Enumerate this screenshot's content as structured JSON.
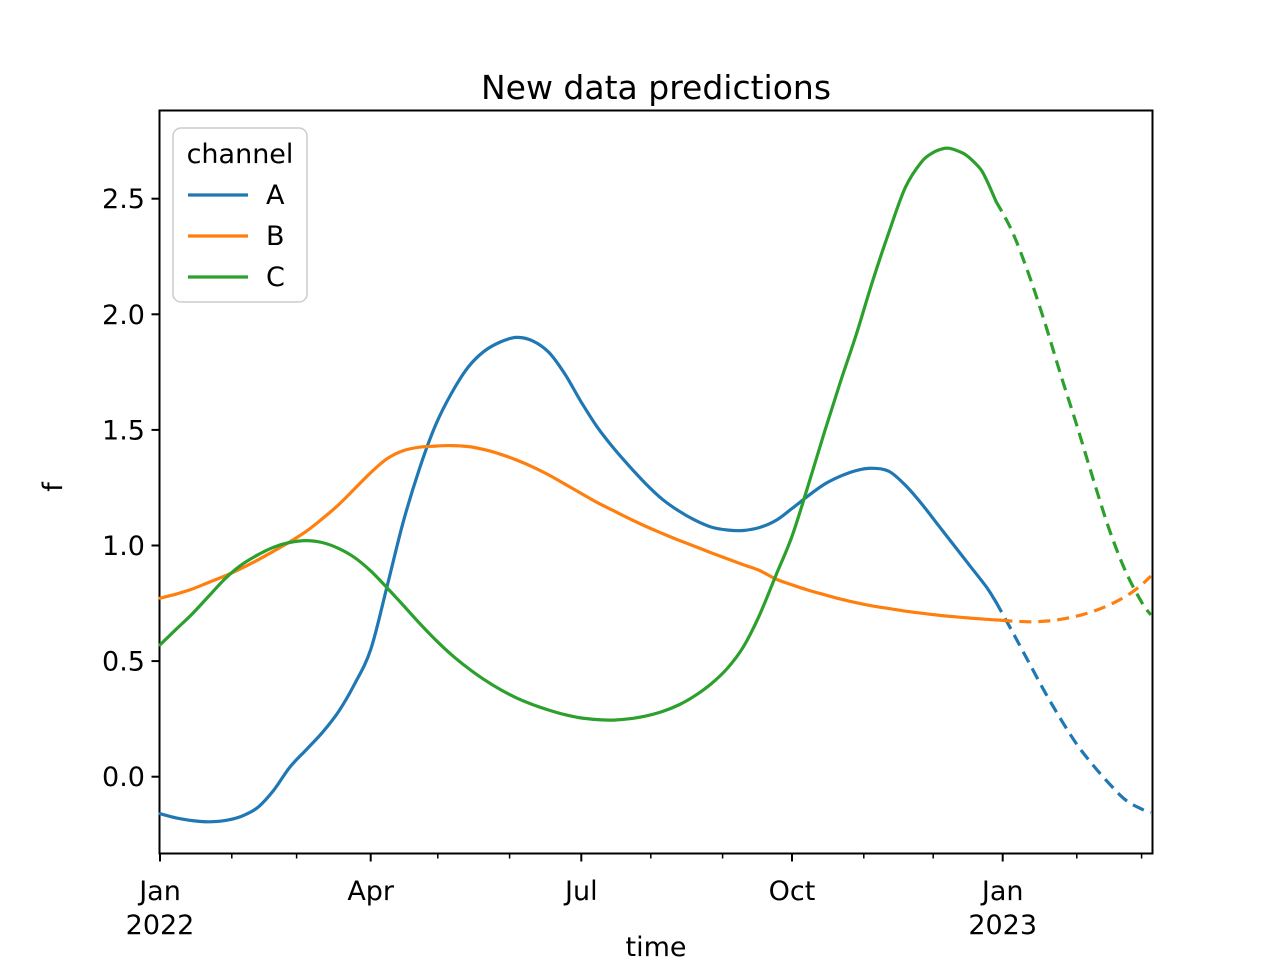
{
  "chart_data": {
    "type": "line",
    "title": "New data predictions",
    "xlabel": "time",
    "ylabel": "f",
    "x_unit": "days_since_2022-01-01",
    "xlim_days": [
      0,
      428.7
    ],
    "ylim": [
      -0.33,
      2.88
    ],
    "grid": false,
    "line_style_meaning": {
      "solid": "observed data",
      "dashed": "prediction"
    },
    "legend": {
      "title": "channel",
      "position": "upper left"
    },
    "xticks_major": [
      {
        "day": 0,
        "label": "Jan",
        "year": "2022"
      },
      {
        "day": 91,
        "label": "Apr",
        "year": ""
      },
      {
        "day": 182,
        "label": "Jul",
        "year": ""
      },
      {
        "day": 273,
        "label": "Oct",
        "year": ""
      },
      {
        "day": 364,
        "label": "Jan",
        "year": "2023"
      }
    ],
    "xticks_minor_days": [
      31,
      59,
      120,
      151,
      212,
      243,
      304,
      334,
      396,
      424
    ],
    "yticks": [
      0.0,
      0.5,
      1.0,
      1.5,
      2.0,
      2.5
    ],
    "series": [
      {
        "name": "A",
        "color": "#1f77b4",
        "solid_points_day_value": [
          [
            0,
            -0.16
          ],
          [
            7,
            -0.178
          ],
          [
            14,
            -0.19
          ],
          [
            21,
            -0.195
          ],
          [
            28,
            -0.19
          ],
          [
            35,
            -0.172
          ],
          [
            42,
            -0.135
          ],
          [
            49,
            -0.06
          ],
          [
            56,
            0.04
          ],
          [
            63,
            0.115
          ],
          [
            70,
            0.19
          ],
          [
            77,
            0.28
          ],
          [
            84,
            0.4
          ],
          [
            91,
            0.55
          ],
          [
            98,
            0.82
          ],
          [
            105,
            1.1
          ],
          [
            112,
            1.33
          ],
          [
            119,
            1.52
          ],
          [
            126,
            1.66
          ],
          [
            133,
            1.77
          ],
          [
            140,
            1.84
          ],
          [
            147,
            1.88
          ],
          [
            154,
            1.9
          ],
          [
            161,
            1.885
          ],
          [
            168,
            1.835
          ],
          [
            175,
            1.74
          ],
          [
            182,
            1.62
          ],
          [
            189,
            1.51
          ],
          [
            196,
            1.42
          ],
          [
            203,
            1.34
          ],
          [
            210,
            1.265
          ],
          [
            217,
            1.2
          ],
          [
            224,
            1.15
          ],
          [
            231,
            1.11
          ],
          [
            238,
            1.08
          ],
          [
            245,
            1.067
          ],
          [
            252,
            1.065
          ],
          [
            259,
            1.078
          ],
          [
            266,
            1.108
          ],
          [
            273,
            1.16
          ],
          [
            280,
            1.215
          ],
          [
            287,
            1.265
          ],
          [
            294,
            1.3
          ],
          [
            301,
            1.325
          ],
          [
            308,
            1.334
          ],
          [
            315,
            1.32
          ],
          [
            322,
            1.26
          ],
          [
            329,
            1.18
          ],
          [
            336,
            1.09
          ],
          [
            343,
            1.0
          ],
          [
            350,
            0.91
          ],
          [
            357,
            0.82
          ],
          [
            361,
            0.757
          ]
        ],
        "dashed_points_day_value": [
          [
            361,
            0.757
          ],
          [
            368,
            0.63
          ],
          [
            375,
            0.5
          ],
          [
            382,
            0.37
          ],
          [
            389,
            0.25
          ],
          [
            396,
            0.14
          ],
          [
            403,
            0.05
          ],
          [
            410,
            -0.03
          ],
          [
            417,
            -0.1
          ],
          [
            424,
            -0.14
          ],
          [
            428,
            -0.155
          ]
        ]
      },
      {
        "name": "B",
        "color": "#ff7f0e",
        "solid_points_day_value": [
          [
            0,
            0.772
          ],
          [
            7,
            0.79
          ],
          [
            14,
            0.812
          ],
          [
            21,
            0.84
          ],
          [
            28,
            0.868
          ],
          [
            35,
            0.9
          ],
          [
            42,
            0.936
          ],
          [
            49,
            0.975
          ],
          [
            56,
            1.015
          ],
          [
            63,
            1.06
          ],
          [
            70,
            1.115
          ],
          [
            77,
            1.175
          ],
          [
            84,
            1.245
          ],
          [
            91,
            1.315
          ],
          [
            98,
            1.375
          ],
          [
            105,
            1.41
          ],
          [
            112,
            1.425
          ],
          [
            119,
            1.43
          ],
          [
            126,
            1.432
          ],
          [
            133,
            1.428
          ],
          [
            140,
            1.415
          ],
          [
            147,
            1.395
          ],
          [
            154,
            1.37
          ],
          [
            161,
            1.34
          ],
          [
            168,
            1.305
          ],
          [
            175,
            1.265
          ],
          [
            182,
            1.225
          ],
          [
            189,
            1.185
          ],
          [
            196,
            1.15
          ],
          [
            203,
            1.115
          ],
          [
            210,
            1.082
          ],
          [
            217,
            1.052
          ],
          [
            224,
            1.023
          ],
          [
            231,
            0.996
          ],
          [
            238,
            0.969
          ],
          [
            245,
            0.943
          ],
          [
            252,
            0.917
          ],
          [
            259,
            0.892
          ],
          [
            266,
            0.855
          ],
          [
            273,
            0.83
          ],
          [
            280,
            0.807
          ],
          [
            287,
            0.787
          ],
          [
            294,
            0.768
          ],
          [
            301,
            0.752
          ],
          [
            308,
            0.738
          ],
          [
            315,
            0.727
          ],
          [
            322,
            0.716
          ],
          [
            329,
            0.707
          ],
          [
            336,
            0.699
          ],
          [
            343,
            0.692
          ],
          [
            350,
            0.686
          ],
          [
            357,
            0.681
          ],
          [
            363,
            0.677
          ]
        ],
        "dashed_points_day_value": [
          [
            363,
            0.677
          ],
          [
            370,
            0.672
          ],
          [
            377,
            0.67
          ],
          [
            384,
            0.674
          ],
          [
            391,
            0.684
          ],
          [
            398,
            0.7
          ],
          [
            405,
            0.722
          ],
          [
            412,
            0.752
          ],
          [
            419,
            0.792
          ],
          [
            424,
            0.83
          ],
          [
            428,
            0.868
          ]
        ]
      },
      {
        "name": "C",
        "color": "#2ca02c",
        "solid_points_day_value": [
          [
            0,
            0.57
          ],
          [
            7,
            0.638
          ],
          [
            14,
            0.705
          ],
          [
            21,
            0.78
          ],
          [
            28,
            0.855
          ],
          [
            35,
            0.915
          ],
          [
            42,
            0.958
          ],
          [
            49,
            0.992
          ],
          [
            56,
            1.013
          ],
          [
            63,
            1.021
          ],
          [
            70,
            1.013
          ],
          [
            77,
            0.988
          ],
          [
            84,
            0.948
          ],
          [
            91,
            0.89
          ],
          [
            98,
            0.818
          ],
          [
            105,
            0.742
          ],
          [
            112,
            0.665
          ],
          [
            119,
            0.592
          ],
          [
            126,
            0.527
          ],
          [
            133,
            0.47
          ],
          [
            140,
            0.42
          ],
          [
            147,
            0.377
          ],
          [
            154,
            0.341
          ],
          [
            161,
            0.312
          ],
          [
            168,
            0.288
          ],
          [
            175,
            0.268
          ],
          [
            182,
            0.254
          ],
          [
            189,
            0.247
          ],
          [
            196,
            0.245
          ],
          [
            203,
            0.251
          ],
          [
            210,
            0.263
          ],
          [
            217,
            0.282
          ],
          [
            224,
            0.31
          ],
          [
            231,
            0.35
          ],
          [
            238,
            0.401
          ],
          [
            245,
            0.468
          ],
          [
            252,
            0.562
          ],
          [
            259,
            0.7
          ],
          [
            266,
            0.87
          ],
          [
            273,
            1.04
          ],
          [
            280,
            1.26
          ],
          [
            287,
            1.49
          ],
          [
            294,
            1.71
          ],
          [
            301,
            1.92
          ],
          [
            308,
            2.15
          ],
          [
            315,
            2.36
          ],
          [
            322,
            2.55
          ],
          [
            329,
            2.66
          ],
          [
            334,
            2.7
          ],
          [
            338,
            2.716
          ],
          [
            341,
            2.718
          ],
          [
            345,
            2.705
          ],
          [
            348,
            2.69
          ],
          [
            352,
            2.655
          ],
          [
            355,
            2.62
          ],
          [
            358,
            2.56
          ],
          [
            361,
            2.49
          ]
        ],
        "dashed_points_day_value": [
          [
            361,
            2.49
          ],
          [
            368,
            2.36
          ],
          [
            375,
            2.18
          ],
          [
            382,
            1.97
          ],
          [
            389,
            1.74
          ],
          [
            396,
            1.52
          ],
          [
            403,
            1.29
          ],
          [
            410,
            1.07
          ],
          [
            417,
            0.89
          ],
          [
            424,
            0.755
          ],
          [
            428,
            0.7
          ]
        ]
      }
    ]
  }
}
